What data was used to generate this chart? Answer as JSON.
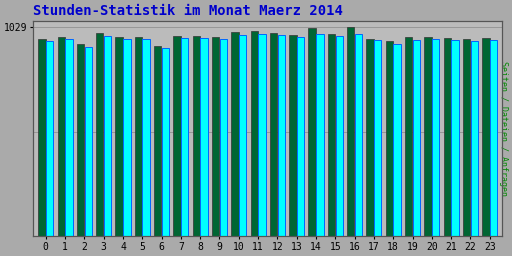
{
  "title": "Stunden-Statistik im Monat Maerz 2014",
  "title_color": "#0000cc",
  "ylabel_right": "Seiten / Dateien / Anfragen",
  "ylabel_right_color": "#008800",
  "hours": [
    0,
    1,
    2,
    3,
    4,
    5,
    6,
    7,
    8,
    9,
    10,
    11,
    12,
    13,
    14,
    15,
    16,
    17,
    18,
    19,
    20,
    21,
    22,
    23
  ],
  "cyan_values": [
    960,
    972,
    930,
    985,
    970,
    968,
    925,
    975,
    973,
    970,
    992,
    997,
    988,
    978,
    993,
    985,
    993,
    965,
    945,
    965,
    970,
    965,
    962,
    965
  ],
  "green_values": [
    970,
    980,
    945,
    1000,
    982,
    978,
    938,
    986,
    983,
    982,
    1005,
    1010,
    1001,
    988,
    1023,
    996,
    1028,
    972,
    958,
    978,
    982,
    975,
    970,
    975
  ],
  "ytick_label": "1029",
  "ymin": 0,
  "ymax": 1060,
  "ytick_val": 1029,
  "ytick2_val": 515,
  "bar_color_cyan": "#00FFFF",
  "bar_color_green": "#006633",
  "bar_color_blue": "#0066FF",
  "bg_color": "#aaaaaa",
  "plot_bg_color": "#bbbbbb",
  "border_color": "#555555",
  "font_family": "monospace"
}
